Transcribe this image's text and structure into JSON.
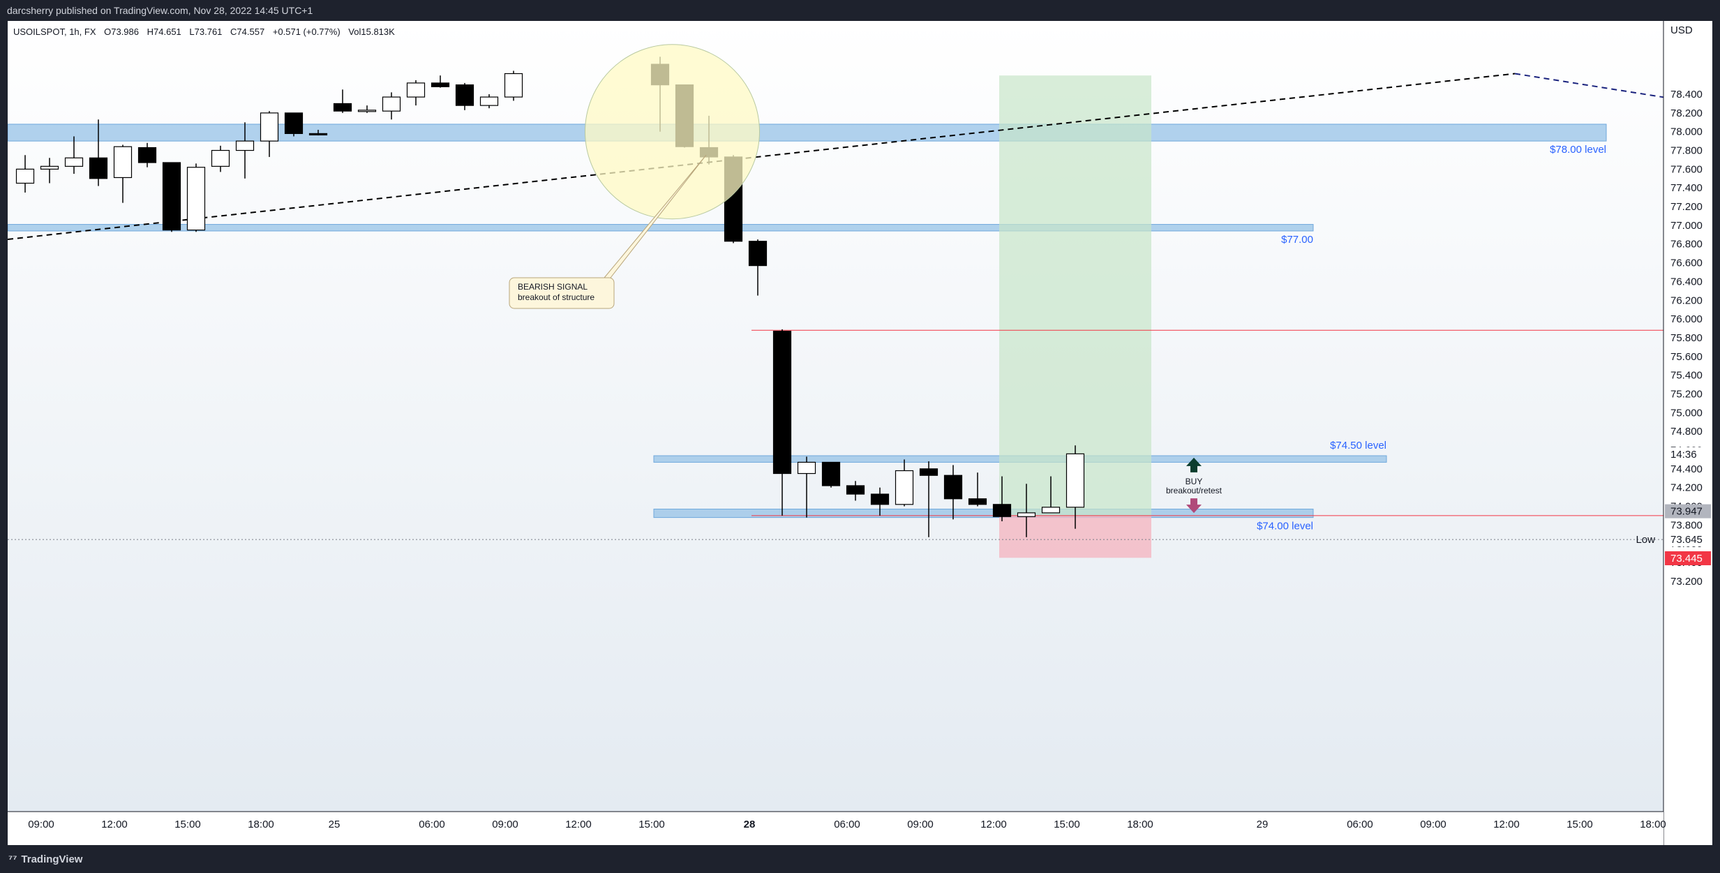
{
  "header": {
    "published": "darcsherry published on TradingView.com, Nov 28, 2022 14:45 UTC+1"
  },
  "legend": {
    "symbol": "USOILSPOT, 1h, FX",
    "open": "O73.986",
    "high": "H74.651",
    "low": "L73.761",
    "close": "C74.557",
    "change": "+0.571 (+0.77%)",
    "volume": "Vol15.813K"
  },
  "footer": {
    "brand": "TradingView"
  },
  "colors": {
    "zone": "#90bfe6",
    "bull": "#ffffff",
    "bear": "#000000",
    "profit": "#c8e6c9",
    "loss": "#f4b6c2",
    "highlight": "#fff9c4",
    "price_red": "#f23645",
    "arrow_up": "#0b3d2e",
    "arrow_down": "#b04a7a"
  },
  "chart_data": {
    "type": "candlestick",
    "symbol": "USOILSPOT",
    "timeframe": "1h",
    "currency_label": "USD",
    "y_range": [
      73.2,
      78.6
    ],
    "y_ticks": [
      "78.400",
      "78.200",
      "78.000",
      "77.800",
      "77.600",
      "77.400",
      "77.200",
      "77.000",
      "76.800",
      "76.600",
      "76.400",
      "76.200",
      "76.000",
      "75.800",
      "75.600",
      "75.400",
      "75.200",
      "75.000",
      "74.800",
      "74.600",
      "74.400",
      "74.200",
      "74.000",
      "73.800",
      "73.600",
      "73.400",
      "73.200"
    ],
    "y_tick_values": [
      78.4,
      78.2,
      78.0,
      77.8,
      77.6,
      77.4,
      77.2,
      77.0,
      76.8,
      76.6,
      76.4,
      76.2,
      76.0,
      75.8,
      75.6,
      75.4,
      75.2,
      75.0,
      74.8,
      74.6,
      74.4,
      74.2,
      74.0,
      73.8,
      73.6,
      73.4,
      73.2
    ],
    "x_ticks": [
      {
        "label": "09:00",
        "i": 1
      },
      {
        "label": "12:00",
        "i": 4
      },
      {
        "label": "15:00",
        "i": 7
      },
      {
        "label": "18:00",
        "i": 10
      },
      {
        "label": "25",
        "i": 13
      },
      {
        "label": "06:00",
        "i": 17
      },
      {
        "label": "09:00",
        "i": 20
      },
      {
        "label": "12:00",
        "i": 23
      },
      {
        "label": "15:00",
        "i": 26
      },
      {
        "label": "28",
        "i": 30,
        "bold": true
      },
      {
        "label": "06:00",
        "i": 34
      },
      {
        "label": "09:00",
        "i": 37
      },
      {
        "label": "12:00",
        "i": 40
      },
      {
        "label": "15:00",
        "i": 43
      },
      {
        "label": "18:00",
        "i": 46
      },
      {
        "label": "29",
        "i": 51
      },
      {
        "label": "06:00",
        "i": 55
      },
      {
        "label": "09:00",
        "i": 58
      },
      {
        "label": "12:00",
        "i": 61
      },
      {
        "label": "15:00",
        "i": 64
      },
      {
        "label": "18:00",
        "i": 67
      }
    ],
    "candles": [
      {
        "i": 0,
        "o": 77.45,
        "h": 77.75,
        "l": 77.35,
        "c": 77.6
      },
      {
        "i": 1,
        "o": 77.6,
        "h": 77.72,
        "l": 77.45,
        "c": 77.63
      },
      {
        "i": 2,
        "o": 77.63,
        "h": 77.95,
        "l": 77.55,
        "c": 77.72
      },
      {
        "i": 3,
        "o": 77.72,
        "h": 78.13,
        "l": 77.42,
        "c": 77.5
      },
      {
        "i": 4,
        "o": 77.51,
        "h": 77.86,
        "l": 77.24,
        "c": 77.84
      },
      {
        "i": 5,
        "o": 77.83,
        "h": 77.88,
        "l": 77.62,
        "c": 77.67
      },
      {
        "i": 6,
        "o": 77.67,
        "h": 77.67,
        "l": 76.93,
        "c": 76.95
      },
      {
        "i": 7,
        "o": 76.95,
        "h": 77.66,
        "l": 76.93,
        "c": 77.62
      },
      {
        "i": 8,
        "o": 77.63,
        "h": 77.85,
        "l": 77.57,
        "c": 77.8
      },
      {
        "i": 9,
        "o": 77.8,
        "h": 78.1,
        "l": 77.5,
        "c": 77.9
      },
      {
        "i": 10,
        "o": 77.9,
        "h": 78.22,
        "l": 77.73,
        "c": 78.2
      },
      {
        "i": 11,
        "o": 78.2,
        "h": 78.2,
        "l": 77.95,
        "c": 77.98
      },
      {
        "i": 12,
        "o": 77.98,
        "h": 78.02,
        "l": 77.96,
        "c": 77.97
      },
      {
        "i": 13,
        "o": 78.3,
        "h": 78.45,
        "l": 78.2,
        "c": 78.22
      },
      {
        "i": 14,
        "o": 78.22,
        "h": 78.28,
        "l": 78.2,
        "c": 78.23
      },
      {
        "i": 15,
        "o": 78.22,
        "h": 78.42,
        "l": 78.13,
        "c": 78.37
      },
      {
        "i": 16,
        "o": 78.37,
        "h": 78.55,
        "l": 78.28,
        "c": 78.52
      },
      {
        "i": 17,
        "o": 78.52,
        "h": 78.6,
        "l": 78.47,
        "c": 78.48
      },
      {
        "i": 18,
        "o": 78.5,
        "h": 78.52,
        "l": 78.23,
        "c": 78.28
      },
      {
        "i": 19,
        "o": 78.28,
        "h": 78.4,
        "l": 78.25,
        "c": 78.37
      },
      {
        "i": 20,
        "o": 78.37,
        "h": 78.65,
        "l": 78.33,
        "c": 78.62
      },
      {
        "i": 26,
        "o": 78.72,
        "h": 78.8,
        "l": 78.0,
        "c": 78.5
      },
      {
        "i": 27,
        "o": 78.5,
        "h": 78.5,
        "l": 77.83,
        "c": 77.84
      },
      {
        "i": 28,
        "o": 77.83,
        "h": 78.17,
        "l": 77.65,
        "c": 77.73
      },
      {
        "i": 29,
        "o": 77.73,
        "h": 77.75,
        "l": 76.81,
        "c": 76.83
      },
      {
        "i": 30,
        "o": 76.83,
        "h": 76.85,
        "l": 76.25,
        "c": 76.57
      },
      {
        "i": 31,
        "o": 75.87,
        "h": 75.89,
        "l": 73.9,
        "c": 74.35
      },
      {
        "i": 32,
        "o": 74.35,
        "h": 74.53,
        "l": 73.88,
        "c": 74.47
      },
      {
        "i": 33,
        "o": 74.47,
        "h": 74.47,
        "l": 74.2,
        "c": 74.22
      },
      {
        "i": 34,
        "o": 74.22,
        "h": 74.27,
        "l": 74.06,
        "c": 74.13
      },
      {
        "i": 35,
        "o": 74.13,
        "h": 74.2,
        "l": 73.9,
        "c": 74.02
      },
      {
        "i": 36,
        "o": 74.02,
        "h": 74.5,
        "l": 74.0,
        "c": 74.38
      },
      {
        "i": 37,
        "o": 74.4,
        "h": 74.48,
        "l": 73.67,
        "c": 74.33
      },
      {
        "i": 38,
        "o": 74.33,
        "h": 74.44,
        "l": 73.86,
        "c": 74.08
      },
      {
        "i": 39,
        "o": 74.08,
        "h": 74.36,
        "l": 74.0,
        "c": 74.02
      },
      {
        "i": 40,
        "o": 74.02,
        "h": 74.32,
        "l": 73.84,
        "c": 73.89
      },
      {
        "i": 41,
        "o": 73.89,
        "h": 74.24,
        "l": 73.67,
        "c": 73.93
      },
      {
        "i": 42,
        "o": 73.93,
        "h": 74.32,
        "l": 73.93,
        "c": 73.99
      },
      {
        "i": 43,
        "o": 73.99,
        "h": 74.65,
        "l": 73.76,
        "c": 74.56
      }
    ],
    "zones": [
      {
        "label": "$78.00 level",
        "from_i": -1,
        "to_i": 65,
        "y1": 77.9,
        "y2": 78.08
      },
      {
        "label": "$77.00",
        "from_i": -1,
        "to_i": 53,
        "y1": 76.94,
        "y2": 77.01
      },
      {
        "label": "$74.50 level",
        "from_i": 26,
        "to_i": 56,
        "y1": 74.47,
        "y2": 74.54
      },
      {
        "label": "$74.00 level",
        "from_i": 26,
        "to_i": 53,
        "y1": 73.88,
        "y2": 73.97
      }
    ],
    "trendline": {
      "from": [
        -1,
        76.85
      ],
      "to": [
        61,
        78.62
      ],
      "continue_to": [
        68,
        78.33
      ]
    },
    "position": {
      "from_i": 40,
      "to_i": 46,
      "entry": 73.9,
      "target": 78.6,
      "stop": 73.45
    },
    "horizontal_lines": [
      {
        "value": 75.88,
        "from_i": 30,
        "color": "#f23645"
      },
      {
        "value": 73.9,
        "from_i": 30,
        "color": "#f23645"
      },
      {
        "value": 73.645,
        "from_i": -1,
        "color": "#787b86",
        "dotted": true
      }
    ],
    "highlight_circle": {
      "i": 26.5,
      "value": 78.0
    },
    "annotations": {
      "bearish": [
        "BEARISH SIGNAL",
        "breakout of structure"
      ],
      "buy": [
        "BUY",
        "breakout/retest"
      ]
    },
    "price_badges": [
      {
        "label": "14:36",
        "value": 74.557,
        "bg": "#ffffff",
        "fg": "#131722"
      },
      {
        "label": "73.947",
        "value": 73.947,
        "bg": "#b2b5be",
        "fg": "#131722"
      },
      {
        "label": "73.645",
        "value": 73.645,
        "bg": "#ffffff",
        "fg": "#131722"
      },
      {
        "label": "73.445",
        "value": 73.445,
        "bg": "#f23645",
        "fg": "#ffffff"
      }
    ],
    "low_label": "Low"
  }
}
